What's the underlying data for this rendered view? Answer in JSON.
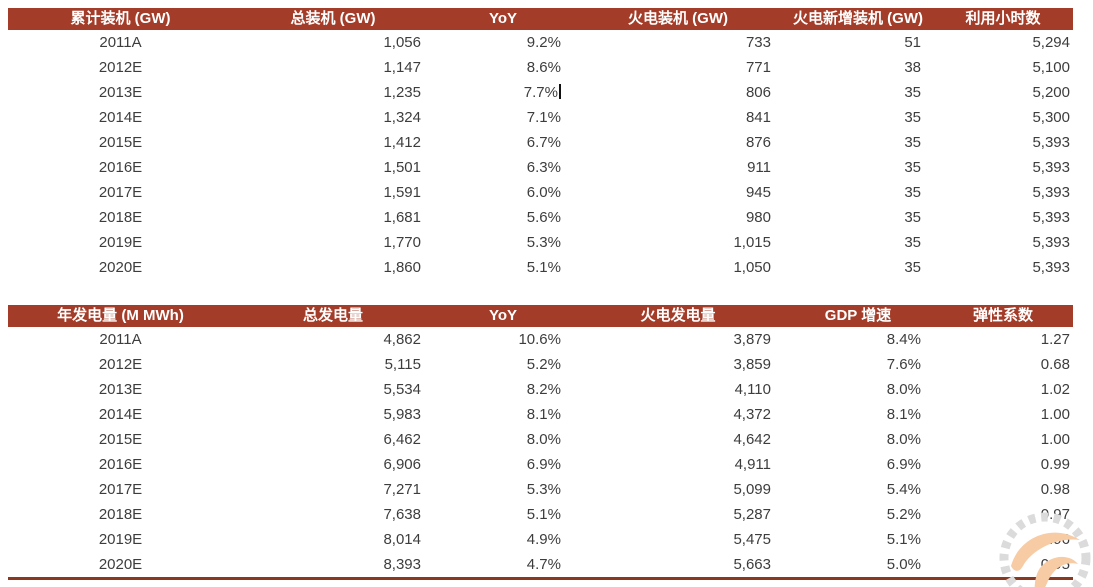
{
  "page": {
    "background": "#FFFFFF"
  },
  "colors": {
    "header_bg": "#A33C28",
    "header_text": "#FFFFFF",
    "body_text": "#3D3D3D",
    "bottom_rule": "#8A3920",
    "watermark_gear": "#DBDBDB",
    "watermark_swoosh": "#F7CBA4"
  },
  "tables": [
    {
      "name": "installed-capacity-forecast",
      "columns": [
        "累计装机 (GW)",
        "总装机 (GW)",
        "YoY",
        "火电装机 (GW)",
        "火电新增装机 (GW)",
        "利用小时数"
      ],
      "rows": [
        [
          "2011A",
          "1,056",
          "9.2%",
          "733",
          "51",
          "5,294"
        ],
        [
          "2012E",
          "1,147",
          "8.6%",
          "771",
          "38",
          "5,100"
        ],
        [
          "2013E",
          "1,235",
          "7.7%",
          "806",
          "35",
          "5,200"
        ],
        [
          "2014E",
          "1,324",
          "7.1%",
          "841",
          "35",
          "5,300"
        ],
        [
          "2015E",
          "1,412",
          "6.7%",
          "876",
          "35",
          "5,393"
        ],
        [
          "2016E",
          "1,501",
          "6.3%",
          "911",
          "35",
          "5,393"
        ],
        [
          "2017E",
          "1,591",
          "6.0%",
          "945",
          "35",
          "5,393"
        ],
        [
          "2018E",
          "1,681",
          "5.6%",
          "980",
          "35",
          "5,393"
        ],
        [
          "2019E",
          "1,770",
          "5.3%",
          "1,015",
          "35",
          "5,393"
        ],
        [
          "2020E",
          "1,860",
          "5.1%",
          "1,050",
          "35",
          "5,393"
        ]
      ]
    },
    {
      "name": "annual-power-generation-forecast",
      "columns": [
        "年发电量 (M MWh)",
        "总发电量",
        "YoY",
        "火电发电量",
        "GDP 增速",
        "弹性系数"
      ],
      "rows": [
        [
          "2011A",
          "4,862",
          "10.6%",
          "3,879",
          "8.4%",
          "1.27"
        ],
        [
          "2012E",
          "5,115",
          "5.2%",
          "3,859",
          "7.6%",
          "0.68"
        ],
        [
          "2013E",
          "5,534",
          "8.2%",
          "4,110",
          "8.0%",
          "1.02"
        ],
        [
          "2014E",
          "5,983",
          "8.1%",
          "4,372",
          "8.1%",
          "1.00"
        ],
        [
          "2015E",
          "6,462",
          "8.0%",
          "4,642",
          "8.0%",
          "1.00"
        ],
        [
          "2016E",
          "6,906",
          "6.9%",
          "4,911",
          "6.9%",
          "0.99"
        ],
        [
          "2017E",
          "7,271",
          "5.3%",
          "5,099",
          "5.4%",
          "0.98"
        ],
        [
          "2018E",
          "7,638",
          "5.1%",
          "5,287",
          "5.2%",
          "0.97"
        ],
        [
          "2019E",
          "8,014",
          "4.9%",
          "5,475",
          "5.1%",
          "0.96"
        ],
        [
          "2020E",
          "8,393",
          "4.7%",
          "5,663",
          "5.0%",
          "0.95"
        ]
      ]
    }
  ],
  "caret": {
    "table_index": 0,
    "row_index": 2,
    "col_index": 2
  }
}
